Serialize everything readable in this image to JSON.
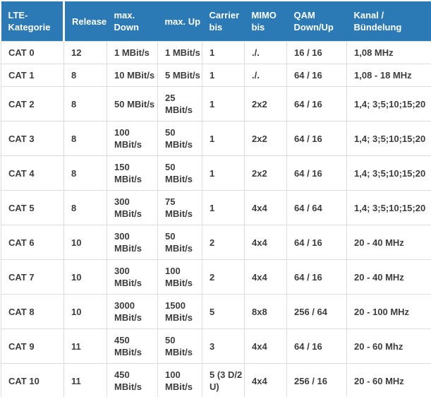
{
  "table": {
    "accent_color": "#2b7ab6",
    "border_color": "#dcdcdc",
    "text_color": "#3d3d3d",
    "header_text_color": "#ffffff",
    "columns": [
      {
        "key": "lte-kategorie",
        "label": "LTE-\nKategorie"
      },
      {
        "key": "release",
        "label": "Release"
      },
      {
        "key": "max-down",
        "label": "max.\nDown"
      },
      {
        "key": "max-up",
        "label": "max. Up"
      },
      {
        "key": "carrier-bis",
        "label": "Carrier\nbis"
      },
      {
        "key": "mimo-bis",
        "label": "MIMO\nbis"
      },
      {
        "key": "qam-down-up",
        "label": "QAM\nDown/Up"
      },
      {
        "key": "kanal-buendelung",
        "label": "Kanal /\nBündelung"
      }
    ],
    "rows": [
      {
        "cells": [
          "CAT 0",
          "12",
          "1 MBit/s",
          "1 MBit/s",
          "1",
          "./.",
          "16 / 16",
          "1,08 MHz"
        ]
      },
      {
        "cells": [
          "CAT 1",
          "8",
          "10 MBit/s",
          "5 MBit/s",
          "1",
          "./.",
          "64 / 16",
          "1,08 - 18 MHz"
        ]
      },
      {
        "cells": [
          "CAT 2",
          "8",
          "50 MBit/s",
          "25\nMBit/s",
          "1",
          "2x2",
          "64 / 16",
          "1,4; 3;5;10;15;20"
        ]
      },
      {
        "cells": [
          "CAT 3",
          "8",
          "100\nMBit/s",
          "50\nMBit/s",
          "1",
          "2x2",
          "64 / 16",
          "1,4; 3;5;10;15;20"
        ]
      },
      {
        "cells": [
          "CAT 4",
          "8",
          "150\nMBit/s",
          "50\nMBit/s",
          "1",
          "2x2",
          "64 / 16",
          "1,4; 3;5;10;15;20"
        ]
      },
      {
        "cells": [
          "CAT 5",
          "8",
          "300\nMBit/s",
          "75\nMBit/s",
          "1",
          "4x4",
          "64 / 64",
          "1,4; 3;5;10;15;20"
        ]
      },
      {
        "cells": [
          "CAT 6",
          "10",
          "300\nMBit/s",
          "50\nMBit/s",
          "2",
          "4x4",
          "64 / 16",
          "20 - 40 MHz"
        ]
      },
      {
        "cells": [
          "CAT 7",
          "10",
          "300\nMBit/s",
          "100\nMBit/s",
          "2",
          "4x4",
          "64 / 16",
          "20 - 40 MHz"
        ]
      },
      {
        "cells": [
          "CAT 8",
          "10",
          "3000\nMBit/s",
          "1500\nMBit/s",
          "5",
          "8x8",
          "256 / 64",
          "20 - 100 MHz"
        ]
      },
      {
        "cells": [
          "CAT 9",
          "11",
          "450\nMBit/s",
          "50\nMBit/s",
          "3",
          "4x4",
          "64 / 16",
          "20 - 60 Mhz"
        ]
      },
      {
        "cells": [
          "CAT 10",
          "11",
          "450\nMBit/s",
          "100\nMBit/s",
          "5 (3 D/2\nU)",
          "4x4",
          "256 / 16",
          "20 - 60 MHz"
        ]
      }
    ]
  }
}
